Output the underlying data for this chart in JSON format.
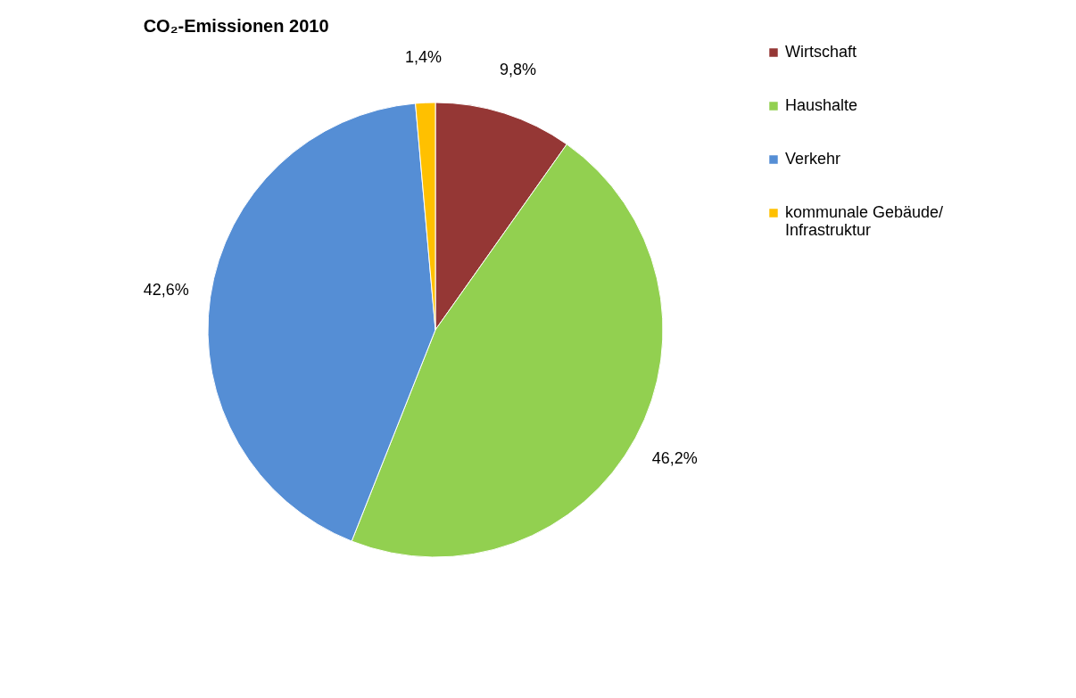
{
  "chart_data": {
    "type": "pie",
    "title": "CO₂-Emissionen 2010",
    "categories": [
      "Wirtschaft",
      "Haushalte",
      "Verkehr",
      "kommunale Gebäude/Infrastruktur"
    ],
    "values": [
      9.8,
      46.2,
      42.6,
      1.4
    ],
    "colors": [
      "#953735",
      "#92d050",
      "#558ed5",
      "#ffc000"
    ],
    "value_labels": [
      "9,8%",
      "46,2%",
      "42,6%",
      "1,4%"
    ],
    "legend": "right"
  }
}
